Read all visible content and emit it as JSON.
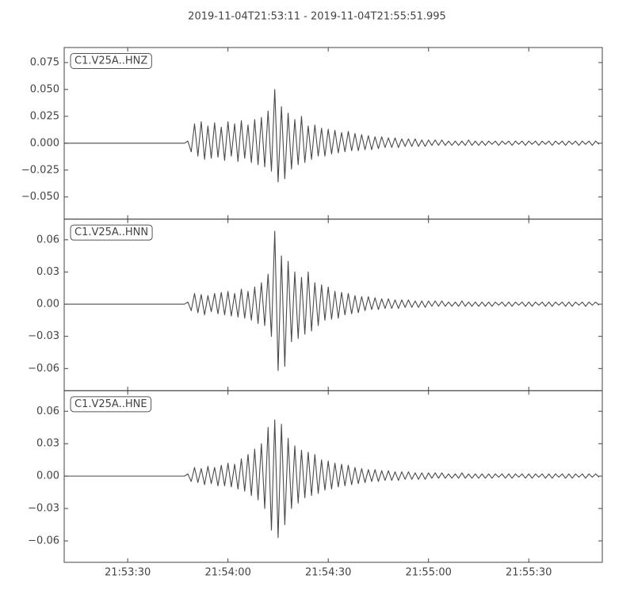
{
  "title": "2019-11-04T21:53:11  -  2019-11-04T21:55:51.995",
  "chart_data": [
    {
      "type": "line",
      "xlim": [
        78791,
        78951.995
      ],
      "ylim": [
        -0.0706,
        0.089
      ],
      "yticks": [
        {
          "value": -0.05,
          "label": "−0.050"
        },
        {
          "value": -0.025,
          "label": "−0.025"
        },
        {
          "value": 0,
          "label": "0.000"
        },
        0.025,
        {
          "value": 0.05,
          "label": "0.050"
        },
        0.075
      ],
      "x": [
        78791,
        78827,
        78828,
        78829,
        78830,
        78831,
        78832,
        78833,
        78834,
        78835,
        78836,
        78837,
        78838,
        78839,
        78840,
        78841,
        78842,
        78843,
        78844,
        78845,
        78846,
        78847,
        78848,
        78849,
        78850,
        78851,
        78852,
        78853,
        78854,
        78855,
        78856,
        78857,
        78858,
        78859,
        78860,
        78861,
        78862,
        78863,
        78864,
        78865,
        78866,
        78867,
        78868,
        78869,
        78870,
        78871,
        78872,
        78873,
        78874,
        78875,
        78876,
        78877,
        78878,
        78879,
        78880,
        78881,
        78882,
        78883,
        78884,
        78885,
        78886,
        78887,
        78888,
        78889,
        78890,
        78891,
        78892,
        78893,
        78894,
        78895,
        78896,
        78897,
        78898,
        78899,
        78900,
        78901,
        78902,
        78903,
        78904,
        78905,
        78906,
        78907,
        78908,
        78909,
        78910,
        78911,
        78912,
        78913,
        78914,
        78915,
        78916,
        78917,
        78918,
        78919,
        78920,
        78921,
        78922,
        78923,
        78924,
        78925,
        78926,
        78927,
        78928,
        78929,
        78930,
        78931,
        78932,
        78933,
        78934,
        78935,
        78936,
        78937,
        78938,
        78939,
        78940,
        78941,
        78942,
        78943,
        78944,
        78945,
        78946,
        78947,
        78948,
        78949,
        78950,
        78951
      ],
      "series": [
        {
          "name": "C1.V25A..HNZ",
          "color": "#4a4a4a",
          "values": [
            0,
            0,
            0.002,
            -0.008,
            0.018,
            -0.012,
            0.02,
            -0.015,
            0.016,
            -0.014,
            0.019,
            -0.013,
            0.015,
            -0.016,
            0.02,
            -0.012,
            0.018,
            -0.017,
            0.021,
            -0.014,
            0.017,
            -0.018,
            0.022,
            -0.02,
            0.024,
            -0.022,
            0.03,
            -0.026,
            0.05,
            -0.036,
            0.034,
            -0.033,
            0.028,
            -0.024,
            0.022,
            -0.02,
            0.025,
            -0.018,
            0.016,
            -0.015,
            0.017,
            -0.012,
            0.014,
            -0.012,
            0.013,
            -0.01,
            0.012,
            -0.009,
            0.01,
            -0.008,
            0.011,
            -0.007,
            0.009,
            -0.007,
            0.008,
            -0.006,
            0.007,
            -0.006,
            0.006,
            -0.005,
            0.006,
            -0.004,
            0.005,
            -0.004,
            0.005,
            -0.004,
            0.004,
            -0.003,
            0.004,
            -0.003,
            0.004,
            -0.003,
            0.003,
            -0.003,
            0.003,
            -0.002,
            0.003,
            -0.002,
            0.003,
            -0.002,
            0.002,
            -0.002,
            0.002,
            -0.002,
            0.002,
            -0.002,
            0.003,
            -0.002,
            0.002,
            -0.002,
            0.002,
            -0.002,
            0.002,
            -0.001,
            0.002,
            -0.002,
            0.002,
            -0.001,
            0.002,
            -0.002,
            0.002,
            -0.001,
            0.002,
            -0.002,
            0.002,
            -0.001,
            0.002,
            -0.002,
            0.002,
            -0.001,
            0.002,
            -0.002,
            0.002,
            -0.001,
            0.002,
            -0.002,
            0.002,
            -0.001,
            0.002,
            -0.002,
            0.002,
            -0.001,
            0.002,
            -0.002,
            0.002,
            -0.001
          ]
        }
      ]
    },
    {
      "type": "line",
      "xlim": [
        78791,
        78951.995
      ],
      "ylim": [
        -0.0807,
        0.0793
      ],
      "yticks": [
        {
          "value": -0.06,
          "label": "−0.06"
        },
        {
          "value": -0.03,
          "label": "−0.03"
        },
        {
          "value": 0,
          "label": "0.00"
        },
        0.03,
        {
          "value": 0.06,
          "label": "0.06"
        }
      ],
      "x": [
        78791,
        78827,
        78828,
        78829,
        78830,
        78831,
        78832,
        78833,
        78834,
        78835,
        78836,
        78837,
        78838,
        78839,
        78840,
        78841,
        78842,
        78843,
        78844,
        78845,
        78846,
        78847,
        78848,
        78849,
        78850,
        78851,
        78852,
        78853,
        78854,
        78855,
        78856,
        78857,
        78858,
        78859,
        78860,
        78861,
        78862,
        78863,
        78864,
        78865,
        78866,
        78867,
        78868,
        78869,
        78870,
        78871,
        78872,
        78873,
        78874,
        78875,
        78876,
        78877,
        78878,
        78879,
        78880,
        78881,
        78882,
        78883,
        78884,
        78885,
        78886,
        78887,
        78888,
        78889,
        78890,
        78891,
        78892,
        78893,
        78894,
        78895,
        78896,
        78897,
        78898,
        78899,
        78900,
        78901,
        78902,
        78903,
        78904,
        78905,
        78906,
        78907,
        78908,
        78909,
        78910,
        78911,
        78912,
        78913,
        78914,
        78915,
        78916,
        78917,
        78918,
        78919,
        78920,
        78921,
        78922,
        78923,
        78924,
        78925,
        78926,
        78927,
        78928,
        78929,
        78930,
        78931,
        78932,
        78933,
        78934,
        78935,
        78936,
        78937,
        78938,
        78939,
        78940,
        78941,
        78942,
        78943,
        78944,
        78945,
        78946,
        78947,
        78948,
        78949,
        78950,
        78951
      ],
      "series": [
        {
          "name": "C1.V25A..HNN",
          "color": "#4a4a4a",
          "values": [
            0,
            0,
            0.002,
            -0.006,
            0.01,
            -0.008,
            0.009,
            -0.01,
            0.008,
            -0.007,
            0.01,
            -0.009,
            0.011,
            -0.01,
            0.012,
            -0.011,
            0.01,
            -0.012,
            0.014,
            -0.013,
            0.012,
            -0.015,
            0.016,
            -0.018,
            0.02,
            -0.02,
            0.028,
            -0.03,
            0.068,
            -0.062,
            0.045,
            -0.058,
            0.04,
            -0.035,
            0.03,
            -0.032,
            0.025,
            -0.028,
            0.03,
            -0.025,
            0.02,
            -0.02,
            0.018,
            -0.015,
            0.016,
            -0.014,
            0.012,
            -0.013,
            0.011,
            -0.01,
            0.01,
            -0.009,
            0.008,
            -0.008,
            0.007,
            -0.006,
            0.007,
            -0.005,
            0.006,
            -0.005,
            0.005,
            -0.004,
            0.005,
            -0.004,
            0.004,
            -0.004,
            0.004,
            -0.003,
            0.004,
            -0.003,
            0.003,
            -0.003,
            0.003,
            -0.003,
            0.003,
            -0.002,
            0.003,
            -0.002,
            0.003,
            -0.002,
            0.002,
            -0.002,
            0.002,
            -0.002,
            0.003,
            -0.002,
            0.002,
            -0.002,
            0.002,
            -0.002,
            0.002,
            -0.002,
            0.002,
            -0.002,
            0.002,
            -0.001,
            0.002,
            -0.002,
            0.002,
            -0.002,
            0.002,
            -0.001,
            0.002,
            -0.002,
            0.002,
            -0.002,
            0.002,
            -0.001,
            0.002,
            -0.002,
            0.002,
            -0.002,
            0.002,
            -0.001,
            0.002,
            -0.002,
            0.002,
            -0.002,
            0.002,
            -0.001,
            0.002,
            -0.002,
            0.002,
            -0.001,
            0.002,
            -0.001
          ]
        }
      ]
    },
    {
      "type": "line",
      "xlim": [
        78791,
        78951.995
      ],
      "ylim": [
        -0.0798,
        0.079
      ],
      "yticks": [
        {
          "value": -0.06,
          "label": "−0.06"
        },
        {
          "value": -0.03,
          "label": "−0.03"
        },
        {
          "value": 0,
          "label": "0.00"
        },
        0.03,
        {
          "value": 0.06,
          "label": "0.06"
        }
      ],
      "xticks": [
        {
          "value": 78810,
          "label": "21:53:30"
        },
        {
          "value": 78840,
          "label": "21:54:00"
        },
        {
          "value": 78870,
          "label": "21:54:30"
        },
        {
          "value": 78900,
          "label": "21:55:00"
        },
        {
          "value": 78930,
          "label": "21:55:30"
        }
      ],
      "x": [
        78791,
        78827,
        78828,
        78829,
        78830,
        78831,
        78832,
        78833,
        78834,
        78835,
        78836,
        78837,
        78838,
        78839,
        78840,
        78841,
        78842,
        78843,
        78844,
        78845,
        78846,
        78847,
        78848,
        78849,
        78850,
        78851,
        78852,
        78853,
        78854,
        78855,
        78856,
        78857,
        78858,
        78859,
        78860,
        78861,
        78862,
        78863,
        78864,
        78865,
        78866,
        78867,
        78868,
        78869,
        78870,
        78871,
        78872,
        78873,
        78874,
        78875,
        78876,
        78877,
        78878,
        78879,
        78880,
        78881,
        78882,
        78883,
        78884,
        78885,
        78886,
        78887,
        78888,
        78889,
        78890,
        78891,
        78892,
        78893,
        78894,
        78895,
        78896,
        78897,
        78898,
        78899,
        78900,
        78901,
        78902,
        78903,
        78904,
        78905,
        78906,
        78907,
        78908,
        78909,
        78910,
        78911,
        78912,
        78913,
        78914,
        78915,
        78916,
        78917,
        78918,
        78919,
        78920,
        78921,
        78922,
        78923,
        78924,
        78925,
        78926,
        78927,
        78928,
        78929,
        78930,
        78931,
        78932,
        78933,
        78934,
        78935,
        78936,
        78937,
        78938,
        78939,
        78940,
        78941,
        78942,
        78943,
        78944,
        78945,
        78946,
        78947,
        78948,
        78949,
        78950,
        78951
      ],
      "series": [
        {
          "name": "C1.V25A..HNE",
          "color": "#4a4a4a",
          "values": [
            0,
            0,
            0.002,
            -0.005,
            0.008,
            -0.006,
            0.007,
            -0.008,
            0.009,
            -0.007,
            0.008,
            -0.009,
            0.01,
            -0.009,
            0.012,
            -0.01,
            0.011,
            -0.012,
            0.016,
            -0.014,
            0.02,
            -0.018,
            0.025,
            -0.022,
            0.03,
            -0.03,
            0.045,
            -0.05,
            0.052,
            -0.057,
            0.048,
            -0.045,
            0.035,
            -0.03,
            0.028,
            -0.025,
            0.024,
            -0.02,
            0.022,
            -0.018,
            0.02,
            -0.016,
            0.015,
            -0.013,
            0.014,
            -0.012,
            0.012,
            -0.01,
            0.011,
            -0.009,
            0.01,
            -0.008,
            0.008,
            -0.007,
            0.007,
            -0.006,
            0.006,
            -0.005,
            0.006,
            -0.005,
            0.005,
            -0.004,
            0.005,
            -0.004,
            0.004,
            -0.004,
            0.004,
            -0.003,
            0.004,
            -0.003,
            0.003,
            -0.003,
            0.003,
            -0.003,
            0.003,
            -0.002,
            0.003,
            -0.002,
            0.003,
            -0.002,
            0.002,
            -0.002,
            0.002,
            -0.002,
            0.003,
            -0.002,
            0.002,
            -0.002,
            0.002,
            -0.002,
            0.002,
            -0.002,
            0.002,
            -0.002,
            0.002,
            -0.001,
            0.002,
            -0.002,
            0.002,
            -0.002,
            0.002,
            -0.001,
            0.002,
            -0.002,
            0.002,
            -0.002,
            0.002,
            -0.001,
            0.002,
            -0.002,
            0.002,
            -0.002,
            0.002,
            -0.001,
            0.002,
            -0.002,
            0.002,
            -0.002,
            0.002,
            -0.001,
            0.002,
            -0.002,
            0.002,
            -0.001,
            0.002,
            -0.001
          ]
        }
      ]
    }
  ]
}
